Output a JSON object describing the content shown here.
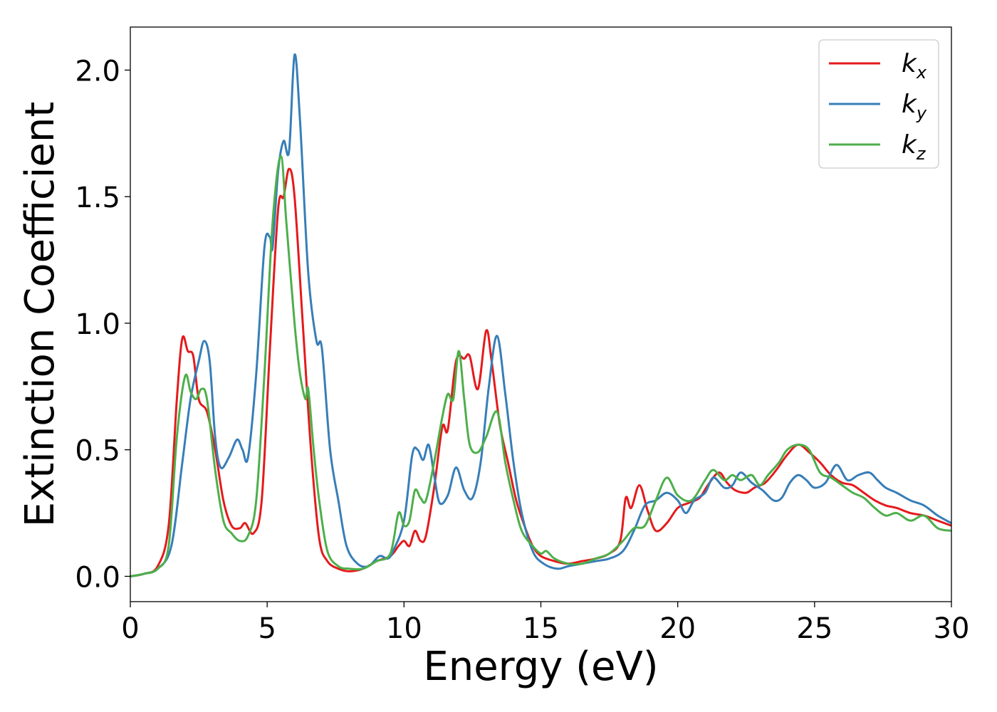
{
  "chart_data": {
    "type": "line",
    "title": "",
    "xlabel": "Energy (eV)",
    "ylabel": "Extinction Coefficient",
    "xlim": [
      0,
      30
    ],
    "ylim": [
      -0.1,
      2.17
    ],
    "xticks": [
      0,
      5,
      10,
      15,
      20,
      25,
      30
    ],
    "xtick_labels": [
      "0",
      "5",
      "10",
      "15",
      "20",
      "25",
      "30"
    ],
    "yticks": [
      0.0,
      0.5,
      1.0,
      1.5,
      2.0
    ],
    "ytick_labels": [
      "0.0",
      "0.5",
      "1.0",
      "1.5",
      "2.0"
    ],
    "grid": false,
    "legend_position": "top-right",
    "series": [
      {
        "name": "k",
        "subscript": "x",
        "color": "#e41a1c",
        "points": [
          [
            0,
            0
          ],
          [
            0.5,
            0.01
          ],
          [
            1.0,
            0.04
          ],
          [
            1.4,
            0.2
          ],
          [
            1.7,
            0.7
          ],
          [
            1.9,
            0.94
          ],
          [
            2.1,
            0.89
          ],
          [
            2.3,
            0.87
          ],
          [
            2.5,
            0.7
          ],
          [
            2.8,
            0.65
          ],
          [
            3.1,
            0.5
          ],
          [
            3.4,
            0.3
          ],
          [
            3.7,
            0.2
          ],
          [
            4.0,
            0.19
          ],
          [
            4.2,
            0.21
          ],
          [
            4.5,
            0.17
          ],
          [
            4.8,
            0.3
          ],
          [
            5.1,
            0.9
          ],
          [
            5.4,
            1.45
          ],
          [
            5.6,
            1.5
          ],
          [
            5.8,
            1.61
          ],
          [
            6.0,
            1.5
          ],
          [
            6.3,
            1.0
          ],
          [
            6.6,
            0.5
          ],
          [
            6.9,
            0.15
          ],
          [
            7.2,
            0.06
          ],
          [
            7.6,
            0.03
          ],
          [
            8.0,
            0.02
          ],
          [
            8.5,
            0.03
          ],
          [
            9.0,
            0.06
          ],
          [
            9.5,
            0.08
          ],
          [
            9.8,
            0.12
          ],
          [
            10.0,
            0.14
          ],
          [
            10.2,
            0.12
          ],
          [
            10.4,
            0.18
          ],
          [
            10.6,
            0.14
          ],
          [
            10.8,
            0.16
          ],
          [
            11.1,
            0.35
          ],
          [
            11.4,
            0.59
          ],
          [
            11.6,
            0.58
          ],
          [
            11.9,
            0.85
          ],
          [
            12.2,
            0.86
          ],
          [
            12.4,
            0.87
          ],
          [
            12.7,
            0.74
          ],
          [
            13.0,
            0.97
          ],
          [
            13.2,
            0.85
          ],
          [
            13.5,
            0.6
          ],
          [
            13.8,
            0.45
          ],
          [
            14.1,
            0.3
          ],
          [
            14.4,
            0.2
          ],
          [
            14.7,
            0.12
          ],
          [
            15.0,
            0.08
          ],
          [
            15.5,
            0.06
          ],
          [
            16.0,
            0.05
          ],
          [
            16.5,
            0.06
          ],
          [
            17.0,
            0.07
          ],
          [
            17.5,
            0.09
          ],
          [
            17.9,
            0.14
          ],
          [
            18.1,
            0.31
          ],
          [
            18.3,
            0.27
          ],
          [
            18.6,
            0.36
          ],
          [
            18.9,
            0.26
          ],
          [
            19.2,
            0.18
          ],
          [
            19.6,
            0.21
          ],
          [
            20.0,
            0.27
          ],
          [
            20.4,
            0.29
          ],
          [
            20.8,
            0.31
          ],
          [
            21.1,
            0.36
          ],
          [
            21.5,
            0.41
          ],
          [
            21.8,
            0.37
          ],
          [
            22.1,
            0.34
          ],
          [
            22.5,
            0.33
          ],
          [
            22.8,
            0.35
          ],
          [
            23.2,
            0.37
          ],
          [
            23.6,
            0.42
          ],
          [
            24.0,
            0.48
          ],
          [
            24.4,
            0.52
          ],
          [
            24.8,
            0.49
          ],
          [
            25.2,
            0.45
          ],
          [
            25.6,
            0.4
          ],
          [
            26.0,
            0.37
          ],
          [
            26.4,
            0.36
          ],
          [
            26.8,
            0.33
          ],
          [
            27.2,
            0.3
          ],
          [
            27.6,
            0.28
          ],
          [
            28.0,
            0.27
          ],
          [
            28.5,
            0.25
          ],
          [
            29.0,
            0.24
          ],
          [
            29.5,
            0.22
          ],
          [
            30.0,
            0.2
          ]
        ]
      },
      {
        "name": "k",
        "subscript": "y",
        "color": "#377eb8",
        "points": [
          [
            0,
            0
          ],
          [
            0.5,
            0.01
          ],
          [
            1.0,
            0.03
          ],
          [
            1.5,
            0.12
          ],
          [
            1.9,
            0.45
          ],
          [
            2.2,
            0.7
          ],
          [
            2.5,
            0.85
          ],
          [
            2.7,
            0.93
          ],
          [
            2.9,
            0.85
          ],
          [
            3.1,
            0.55
          ],
          [
            3.3,
            0.43
          ],
          [
            3.6,
            0.47
          ],
          [
            3.9,
            0.54
          ],
          [
            4.1,
            0.5
          ],
          [
            4.3,
            0.47
          ],
          [
            4.6,
            0.8
          ],
          [
            4.9,
            1.3
          ],
          [
            5.1,
            1.34
          ],
          [
            5.2,
            1.3
          ],
          [
            5.4,
            1.6
          ],
          [
            5.6,
            1.72
          ],
          [
            5.8,
            1.68
          ],
          [
            6.0,
            2.06
          ],
          [
            6.2,
            1.8
          ],
          [
            6.5,
            1.2
          ],
          [
            6.8,
            0.93
          ],
          [
            7.0,
            0.9
          ],
          [
            7.3,
            0.5
          ],
          [
            7.6,
            0.3
          ],
          [
            7.9,
            0.12
          ],
          [
            8.3,
            0.05
          ],
          [
            8.7,
            0.04
          ],
          [
            9.1,
            0.08
          ],
          [
            9.4,
            0.07
          ],
          [
            9.6,
            0.1
          ],
          [
            10.0,
            0.22
          ],
          [
            10.3,
            0.48
          ],
          [
            10.5,
            0.5
          ],
          [
            10.7,
            0.46
          ],
          [
            10.9,
            0.52
          ],
          [
            11.1,
            0.4
          ],
          [
            11.3,
            0.29
          ],
          [
            11.6,
            0.32
          ],
          [
            11.9,
            0.43
          ],
          [
            12.2,
            0.34
          ],
          [
            12.5,
            0.31
          ],
          [
            12.8,
            0.45
          ],
          [
            13.1,
            0.75
          ],
          [
            13.4,
            0.95
          ],
          [
            13.7,
            0.72
          ],
          [
            14.0,
            0.45
          ],
          [
            14.3,
            0.25
          ],
          [
            14.7,
            0.1
          ],
          [
            15.1,
            0.05
          ],
          [
            15.6,
            0.03
          ],
          [
            16.0,
            0.04
          ],
          [
            16.5,
            0.05
          ],
          [
            17.0,
            0.06
          ],
          [
            17.5,
            0.07
          ],
          [
            18.0,
            0.1
          ],
          [
            18.4,
            0.18
          ],
          [
            18.8,
            0.28
          ],
          [
            19.2,
            0.3
          ],
          [
            19.6,
            0.33
          ],
          [
            20.0,
            0.3
          ],
          [
            20.3,
            0.25
          ],
          [
            20.6,
            0.3
          ],
          [
            21.0,
            0.33
          ],
          [
            21.3,
            0.39
          ],
          [
            21.7,
            0.35
          ],
          [
            22.0,
            0.36
          ],
          [
            22.3,
            0.41
          ],
          [
            22.7,
            0.37
          ],
          [
            23.1,
            0.34
          ],
          [
            23.5,
            0.3
          ],
          [
            23.8,
            0.31
          ],
          [
            24.1,
            0.37
          ],
          [
            24.4,
            0.4
          ],
          [
            24.7,
            0.38
          ],
          [
            25.0,
            0.35
          ],
          [
            25.4,
            0.37
          ],
          [
            25.8,
            0.44
          ],
          [
            26.2,
            0.38
          ],
          [
            26.6,
            0.4
          ],
          [
            27.0,
            0.41
          ],
          [
            27.3,
            0.38
          ],
          [
            27.6,
            0.35
          ],
          [
            28.0,
            0.33
          ],
          [
            28.5,
            0.3
          ],
          [
            29.0,
            0.28
          ],
          [
            29.5,
            0.24
          ],
          [
            30.0,
            0.21
          ]
        ]
      },
      {
        "name": "k",
        "subscript": "z",
        "color": "#4daf4a",
        "points": [
          [
            0,
            0
          ],
          [
            0.5,
            0.01
          ],
          [
            1.0,
            0.03
          ],
          [
            1.4,
            0.12
          ],
          [
            1.7,
            0.55
          ],
          [
            2.0,
            0.79
          ],
          [
            2.2,
            0.73
          ],
          [
            2.4,
            0.7
          ],
          [
            2.6,
            0.74
          ],
          [
            2.8,
            0.7
          ],
          [
            3.1,
            0.42
          ],
          [
            3.4,
            0.22
          ],
          [
            3.7,
            0.17
          ],
          [
            4.0,
            0.14
          ],
          [
            4.3,
            0.16
          ],
          [
            4.6,
            0.3
          ],
          [
            4.9,
            0.8
          ],
          [
            5.2,
            1.4
          ],
          [
            5.5,
            1.66
          ],
          [
            5.7,
            1.4
          ],
          [
            6.0,
            1.0
          ],
          [
            6.2,
            0.8
          ],
          [
            6.4,
            0.7
          ],
          [
            6.5,
            0.74
          ],
          [
            6.7,
            0.5
          ],
          [
            6.9,
            0.3
          ],
          [
            7.2,
            0.1
          ],
          [
            7.6,
            0.04
          ],
          [
            8.0,
            0.03
          ],
          [
            8.5,
            0.03
          ],
          [
            9.0,
            0.06
          ],
          [
            9.5,
            0.09
          ],
          [
            9.8,
            0.25
          ],
          [
            10.0,
            0.2
          ],
          [
            10.2,
            0.22
          ],
          [
            10.4,
            0.34
          ],
          [
            10.6,
            0.31
          ],
          [
            10.8,
            0.3
          ],
          [
            11.1,
            0.45
          ],
          [
            11.4,
            0.63
          ],
          [
            11.6,
            0.72
          ],
          [
            11.8,
            0.7
          ],
          [
            12.0,
            0.89
          ],
          [
            12.2,
            0.7
          ],
          [
            12.4,
            0.52
          ],
          [
            12.7,
            0.49
          ],
          [
            13.0,
            0.55
          ],
          [
            13.4,
            0.65
          ],
          [
            13.7,
            0.45
          ],
          [
            14.0,
            0.3
          ],
          [
            14.3,
            0.18
          ],
          [
            14.7,
            0.12
          ],
          [
            15.0,
            0.09
          ],
          [
            15.2,
            0.1
          ],
          [
            15.5,
            0.07
          ],
          [
            16.0,
            0.05
          ],
          [
            16.5,
            0.05
          ],
          [
            17.0,
            0.07
          ],
          [
            17.5,
            0.09
          ],
          [
            18.0,
            0.14
          ],
          [
            18.4,
            0.19
          ],
          [
            18.8,
            0.2
          ],
          [
            19.2,
            0.3
          ],
          [
            19.6,
            0.39
          ],
          [
            20.0,
            0.32
          ],
          [
            20.5,
            0.3
          ],
          [
            21.0,
            0.38
          ],
          [
            21.3,
            0.42
          ],
          [
            21.7,
            0.38
          ],
          [
            22.0,
            0.4
          ],
          [
            22.3,
            0.38
          ],
          [
            22.7,
            0.4
          ],
          [
            23.0,
            0.36
          ],
          [
            23.3,
            0.4
          ],
          [
            23.7,
            0.45
          ],
          [
            24.0,
            0.5
          ],
          [
            24.4,
            0.52
          ],
          [
            24.8,
            0.5
          ],
          [
            25.2,
            0.41
          ],
          [
            25.6,
            0.39
          ],
          [
            26.0,
            0.36
          ],
          [
            26.4,
            0.33
          ],
          [
            26.8,
            0.31
          ],
          [
            27.2,
            0.27
          ],
          [
            27.6,
            0.24
          ],
          [
            28.0,
            0.25
          ],
          [
            28.5,
            0.22
          ],
          [
            29.0,
            0.24
          ],
          [
            29.5,
            0.19
          ],
          [
            30.0,
            0.18
          ]
        ]
      }
    ]
  }
}
